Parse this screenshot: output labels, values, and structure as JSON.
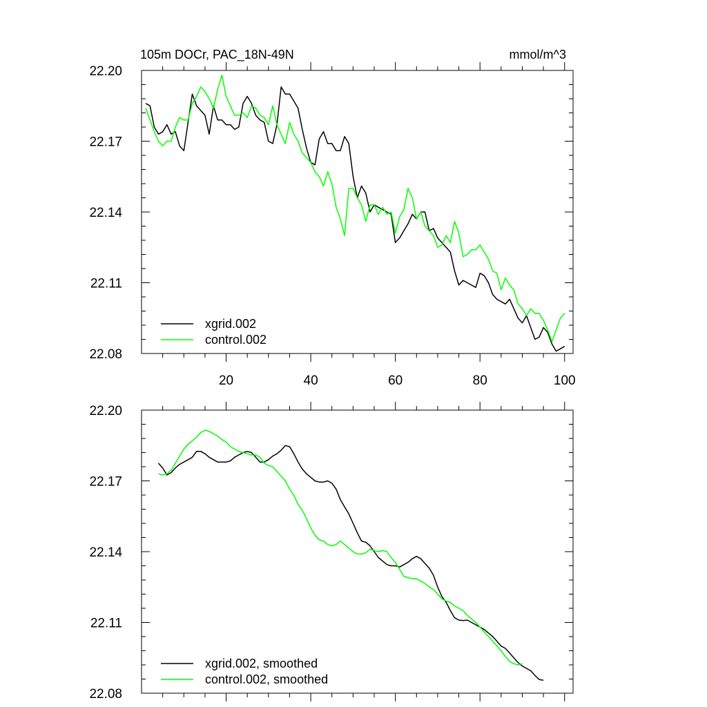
{
  "figure": {
    "title_left": "105m DOCr, PAC_18N-49N",
    "title_right": "mmol/m^3",
    "colors": {
      "series_a": "#000000",
      "series_b": "#00ff00"
    }
  },
  "chart_data": [
    {
      "type": "line",
      "title": "105m DOCr, PAC_18N-49N",
      "units": "mmol/m^3",
      "xlim": [
        0,
        102
      ],
      "ylim": [
        22.08,
        22.2
      ],
      "x_ticks": [
        20,
        40,
        60,
        80,
        100
      ],
      "x_tick_labels": [
        "20",
        "40",
        "60",
        "80",
        "100"
      ],
      "y_ticks": [
        22.08,
        22.11,
        22.14,
        22.17,
        22.2
      ],
      "y_tick_labels": [
        "22.08",
        "22.11",
        "22.14",
        "22.17",
        "22.20"
      ],
      "x_start": 1,
      "legend_position": "bottom-left",
      "series": [
        {
          "name": "xgrid.002",
          "color": "#000000",
          "values": [
            22.186,
            22.185,
            22.176,
            22.173,
            22.174,
            22.177,
            22.173,
            22.174,
            22.168,
            22.166,
            22.178,
            22.19,
            22.185,
            22.183,
            22.181,
            22.173,
            22.185,
            22.179,
            22.179,
            22.177,
            22.177,
            22.175,
            22.176,
            22.186,
            22.189,
            22.186,
            22.181,
            22.179,
            22.178,
            22.17,
            22.169,
            22.177,
            22.193,
            22.19,
            22.19,
            22.187,
            22.184,
            22.175,
            22.167,
            22.161,
            22.16,
            22.171,
            22.174,
            22.169,
            22.169,
            22.166,
            22.166,
            22.172,
            22.169,
            22.155,
            22.146,
            22.151,
            22.148,
            22.14,
            22.143,
            22.142,
            22.141,
            22.14,
            22.139,
            22.127,
            22.129,
            22.132,
            22.135,
            22.139,
            22.137,
            22.14,
            22.14,
            22.132,
            22.133,
            22.129,
            22.127,
            22.125,
            22.123,
            22.115,
            22.109,
            22.111,
            22.11,
            22.109,
            22.108,
            22.114,
            22.113,
            22.11,
            22.105,
            22.103,
            22.102,
            22.101,
            22.103,
            22.099,
            22.095,
            22.093,
            22.096,
            22.091,
            22.086,
            22.087,
            22.091,
            22.089,
            22.084,
            22.081,
            22.082,
            22.083
          ]
        },
        {
          "name": "control.002",
          "color": "#00ff00",
          "values": [
            22.184,
            22.179,
            22.174,
            22.17,
            22.168,
            22.17,
            22.17,
            22.176,
            22.18,
            22.179,
            22.179,
            22.186,
            22.189,
            22.193,
            22.191,
            22.188,
            22.184,
            22.192,
            22.198,
            22.189,
            22.185,
            22.181,
            22.181,
            22.182,
            22.18,
            22.185,
            22.184,
            22.181,
            22.18,
            22.177,
            22.185,
            22.177,
            22.173,
            22.169,
            22.178,
            22.173,
            22.17,
            22.165,
            22.163,
            22.161,
            22.157,
            22.155,
            22.151,
            22.157,
            22.152,
            22.142,
            22.137,
            22.13,
            22.15,
            22.15,
            22.146,
            22.143,
            22.136,
            22.143,
            22.143,
            22.139,
            22.142,
            22.139,
            22.14,
            22.131,
            22.138,
            22.141,
            22.15,
            22.146,
            22.137,
            22.14,
            22.134,
            22.132,
            22.13,
            22.125,
            22.126,
            22.13,
            22.127,
            22.136,
            22.131,
            22.121,
            22.122,
            22.124,
            22.124,
            22.126,
            22.123,
            22.12,
            22.115,
            22.114,
            22.107,
            22.112,
            22.109,
            22.107,
            22.101,
            22.099,
            22.096,
            22.099,
            22.097,
            22.097,
            22.094,
            22.09,
            22.085,
            22.09,
            22.095,
            22.097
          ]
        }
      ]
    },
    {
      "type": "line",
      "xlim": [
        0,
        102
      ],
      "ylim": [
        22.08,
        22.2
      ],
      "y_ticks": [
        22.08,
        22.11,
        22.14,
        22.17,
        22.2
      ],
      "y_tick_labels": [
        "22.08",
        "22.11",
        "22.14",
        "22.17",
        "22.20"
      ],
      "x_ticks": [
        20,
        40,
        60,
        80,
        100
      ],
      "x_start": 4,
      "legend_position": "bottom-left",
      "series": [
        {
          "name": "xgrid.002, smoothed",
          "color": "#000000",
          "values": [
            22.1775,
            22.1755,
            22.1725,
            22.1735,
            22.1755,
            22.177,
            22.178,
            22.179,
            22.18,
            22.1825,
            22.1825,
            22.1815,
            22.18,
            22.179,
            22.178,
            22.178,
            22.178,
            22.1785,
            22.18,
            22.181,
            22.182,
            22.1825,
            22.182,
            22.18,
            22.178,
            22.178,
            22.179,
            22.1805,
            22.1815,
            22.183,
            22.185,
            22.1845,
            22.1815,
            22.178,
            22.175,
            22.173,
            22.1715,
            22.17,
            22.1695,
            22.1695,
            22.17,
            22.169,
            22.1665,
            22.162,
            22.159,
            22.156,
            22.152,
            22.148,
            22.1445,
            22.144,
            22.1425,
            22.14,
            22.1375,
            22.136,
            22.1345,
            22.134,
            22.134,
            22.1335,
            22.1345,
            22.1355,
            22.137,
            22.138,
            22.137,
            22.135,
            22.133,
            22.13,
            22.125,
            22.121,
            22.1185,
            22.115,
            22.112,
            22.111,
            22.1108,
            22.111,
            22.11,
            22.109,
            22.108,
            22.107,
            22.1055,
            22.104,
            22.102,
            22.1,
            22.099,
            22.097,
            22.095,
            22.093,
            22.0915,
            22.0905,
            22.0895,
            22.0875,
            22.0858,
            22.0855
          ]
        },
        {
          "name": "control.002, smoothed",
          "color": "#00ff00",
          "values": [
            22.173,
            22.1725,
            22.173,
            22.1745,
            22.1775,
            22.1805,
            22.1835,
            22.1855,
            22.187,
            22.1885,
            22.1905,
            22.1915,
            22.191,
            22.19,
            22.189,
            22.1875,
            22.1865,
            22.1845,
            22.1835,
            22.1825,
            22.182,
            22.1815,
            22.181,
            22.181,
            22.18,
            22.1775,
            22.1765,
            22.176,
            22.174,
            22.172,
            22.17,
            22.1665,
            22.164,
            22.16,
            22.1575,
            22.154,
            22.15,
            22.147,
            22.145,
            22.1445,
            22.143,
            22.1425,
            22.143,
            22.1445,
            22.143,
            22.1415,
            22.14,
            22.139,
            22.139,
            22.1395,
            22.141,
            22.1405,
            22.14,
            22.1405,
            22.14,
            22.1375,
            22.1355,
            22.1325,
            22.1295,
            22.129,
            22.1285,
            22.1285,
            22.1275,
            22.1265,
            22.125,
            22.124,
            22.122,
            22.12,
            22.119,
            22.1185,
            22.117,
            22.116,
            22.115,
            22.113,
            22.1115,
            22.11,
            22.108,
            22.106,
            22.104,
            22.102,
            22.1,
            22.098,
            22.0955,
            22.0935,
            22.0925,
            22.092,
            22.0925
          ]
        }
      ]
    }
  ]
}
